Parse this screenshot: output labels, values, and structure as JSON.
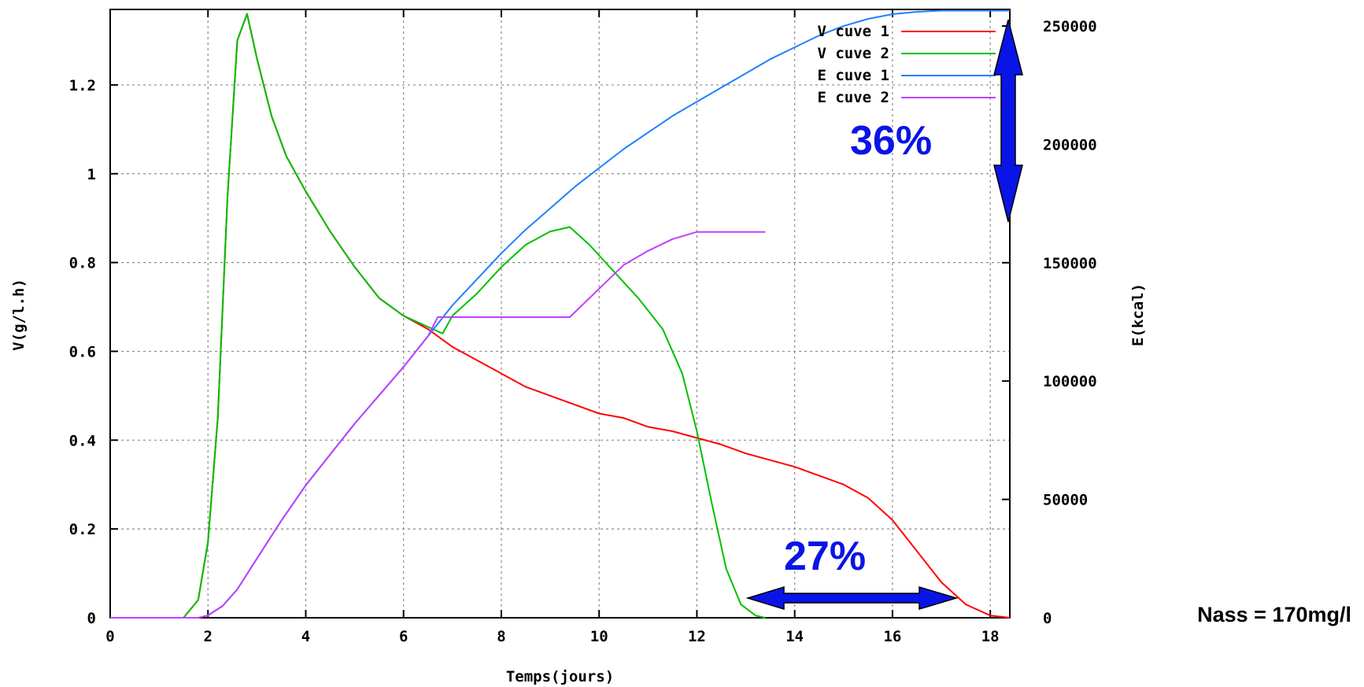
{
  "chart_data": {
    "type": "line",
    "xlabel": "Temps(jours)",
    "ylabel": "V(g/l.h)",
    "y2label": "E(kcal)",
    "xlim": [
      0,
      18.4
    ],
    "ylim": [
      0,
      1.37
    ],
    "y2lim": [
      0,
      257000
    ],
    "x_ticks": [
      "0",
      "2",
      "4",
      "6",
      "8",
      "10",
      "12",
      "14",
      "16",
      "18"
    ],
    "y_ticks": [
      "0",
      "0.2",
      "0.4",
      "0.6",
      "0.8",
      "1",
      "1.2"
    ],
    "y2_ticks": [
      "0",
      "50000",
      "100000",
      "150000",
      "200000",
      "250000"
    ],
    "grid": true,
    "legend_position": "top-right",
    "series": [
      {
        "name": "V cuve 1",
        "axis": "left",
        "color": "#ff0000",
        "points": [
          [
            0,
            0
          ],
          [
            1.5,
            0
          ],
          [
            1.8,
            0.04
          ],
          [
            2.0,
            0.17
          ],
          [
            2.2,
            0.45
          ],
          [
            2.4,
            0.95
          ],
          [
            2.6,
            1.3
          ],
          [
            2.8,
            1.36
          ],
          [
            3.0,
            1.26
          ],
          [
            3.3,
            1.13
          ],
          [
            3.6,
            1.04
          ],
          [
            4.0,
            0.96
          ],
          [
            4.5,
            0.87
          ],
          [
            5.0,
            0.79
          ],
          [
            5.5,
            0.72
          ],
          [
            6.0,
            0.68
          ],
          [
            6.5,
            0.65
          ],
          [
            7.0,
            0.61
          ],
          [
            7.5,
            0.58
          ],
          [
            8.0,
            0.55
          ],
          [
            8.5,
            0.52
          ],
          [
            9.0,
            0.5
          ],
          [
            9.5,
            0.48
          ],
          [
            10.0,
            0.46
          ],
          [
            10.5,
            0.45
          ],
          [
            11.0,
            0.43
          ],
          [
            11.5,
            0.42
          ],
          [
            12.0,
            0.405
          ],
          [
            12.5,
            0.39
          ],
          [
            13.0,
            0.37
          ],
          [
            13.5,
            0.355
          ],
          [
            14.0,
            0.34
          ],
          [
            14.5,
            0.32
          ],
          [
            15.0,
            0.3
          ],
          [
            15.5,
            0.27
          ],
          [
            16.0,
            0.22
          ],
          [
            16.5,
            0.15
          ],
          [
            17.0,
            0.08
          ],
          [
            17.5,
            0.03
          ],
          [
            18.0,
            0.005
          ],
          [
            18.4,
            0
          ]
        ]
      },
      {
        "name": "V cuve 2",
        "axis": "left",
        "color": "#00c000",
        "points": [
          [
            0,
            0
          ],
          [
            1.5,
            0
          ],
          [
            1.8,
            0.04
          ],
          [
            2.0,
            0.17
          ],
          [
            2.2,
            0.45
          ],
          [
            2.4,
            0.95
          ],
          [
            2.6,
            1.3
          ],
          [
            2.8,
            1.36
          ],
          [
            3.0,
            1.26
          ],
          [
            3.3,
            1.13
          ],
          [
            3.6,
            1.04
          ],
          [
            4.0,
            0.96
          ],
          [
            4.5,
            0.87
          ],
          [
            5.0,
            0.79
          ],
          [
            5.5,
            0.72
          ],
          [
            6.0,
            0.68
          ],
          [
            6.5,
            0.655
          ],
          [
            6.8,
            0.64
          ],
          [
            7.0,
            0.68
          ],
          [
            7.5,
            0.73
          ],
          [
            8.0,
            0.79
          ],
          [
            8.5,
            0.84
          ],
          [
            9.0,
            0.87
          ],
          [
            9.4,
            0.88
          ],
          [
            9.8,
            0.84
          ],
          [
            10.3,
            0.78
          ],
          [
            10.8,
            0.72
          ],
          [
            11.3,
            0.65
          ],
          [
            11.7,
            0.55
          ],
          [
            12.0,
            0.42
          ],
          [
            12.3,
            0.26
          ],
          [
            12.6,
            0.11
          ],
          [
            12.9,
            0.03
          ],
          [
            13.2,
            0.005
          ],
          [
            13.4,
            0
          ]
        ]
      },
      {
        "name": "E cuve 1",
        "axis": "right",
        "color": "#2080ff",
        "points": [
          [
            0,
            0
          ],
          [
            1.8,
            0
          ],
          [
            2.0,
            1000
          ],
          [
            2.3,
            5000
          ],
          [
            2.6,
            12000
          ],
          [
            3.0,
            25000
          ],
          [
            3.5,
            41000
          ],
          [
            4.0,
            56000
          ],
          [
            4.5,
            69000
          ],
          [
            5.0,
            82000
          ],
          [
            5.5,
            94000
          ],
          [
            6.0,
            106000
          ],
          [
            6.5,
            119000
          ],
          [
            7.0,
            132000
          ],
          [
            7.5,
            143000
          ],
          [
            8.0,
            154000
          ],
          [
            8.5,
            164000
          ],
          [
            9.0,
            173000
          ],
          [
            9.5,
            182000
          ],
          [
            10.0,
            190000
          ],
          [
            10.5,
            198000
          ],
          [
            11.0,
            205000
          ],
          [
            11.5,
            212000
          ],
          [
            12.0,
            218000
          ],
          [
            12.5,
            224000
          ],
          [
            13.0,
            230000
          ],
          [
            13.5,
            236000
          ],
          [
            14.0,
            241000
          ],
          [
            14.5,
            246000
          ],
          [
            15.0,
            250000
          ],
          [
            15.5,
            253000
          ],
          [
            16.0,
            255000
          ],
          [
            16.5,
            256000
          ],
          [
            17.0,
            256500
          ],
          [
            18.4,
            256500
          ]
        ]
      },
      {
        "name": "E cuve 2",
        "axis": "right",
        "color": "#c040ff",
        "points": [
          [
            0,
            0
          ],
          [
            1.8,
            0
          ],
          [
            2.0,
            1000
          ],
          [
            2.3,
            5000
          ],
          [
            2.6,
            12000
          ],
          [
            3.0,
            25000
          ],
          [
            3.5,
            41000
          ],
          [
            4.0,
            56000
          ],
          [
            4.5,
            69000
          ],
          [
            5.0,
            82000
          ],
          [
            5.5,
            94000
          ],
          [
            6.0,
            106000
          ],
          [
            6.5,
            119000
          ],
          [
            6.7,
            127000
          ],
          [
            9.4,
            127000
          ],
          [
            10.0,
            139000
          ],
          [
            10.5,
            149000
          ],
          [
            11.0,
            155000
          ],
          [
            11.5,
            160000
          ],
          [
            12.0,
            163000
          ],
          [
            12.2,
            163000
          ],
          [
            13.4,
            163000
          ]
        ]
      }
    ],
    "annotations": {
      "top_arrow_label": "36%",
      "bottom_arrow_label": "27%",
      "note": "Nass = 170mg/l",
      "arrow_color": "#0a14e6"
    }
  }
}
